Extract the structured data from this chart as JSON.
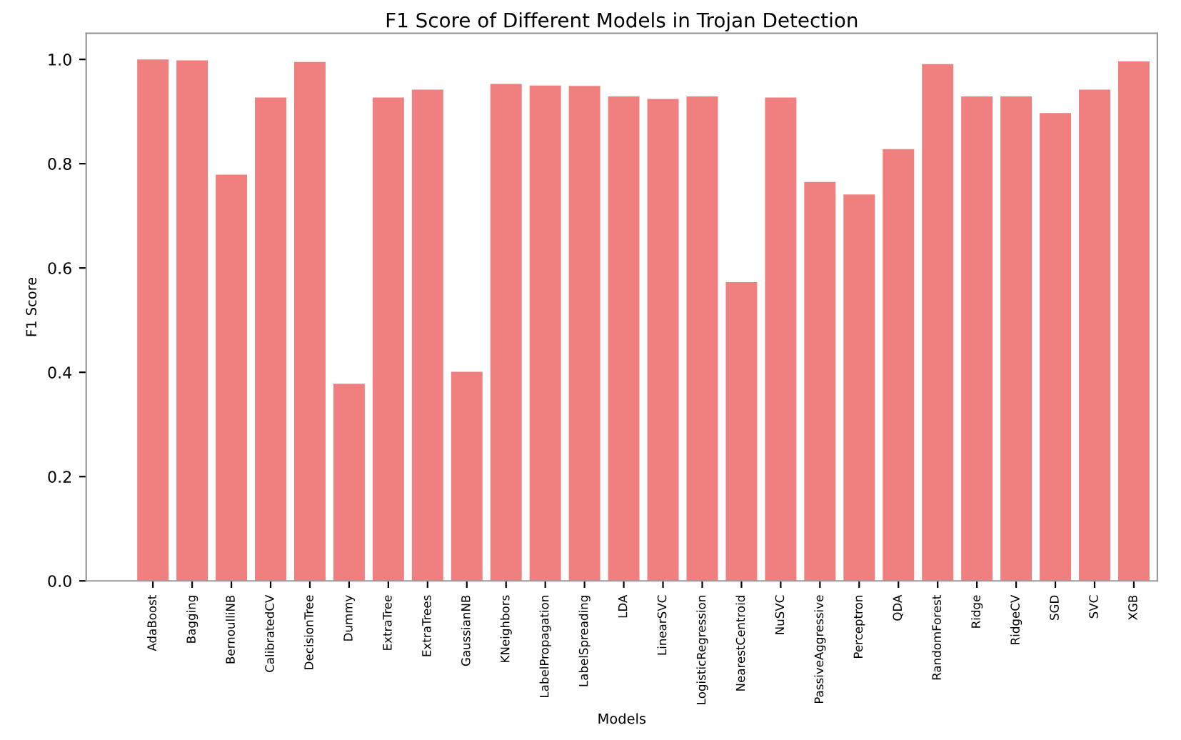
{
  "chart_data": {
    "type": "bar",
    "title": "F1 Score of Different Models in Trojan Detection",
    "xlabel": "Models",
    "ylabel": "F1 Score",
    "categories": [
      "AdaBoost",
      "Bagging",
      "BernoulliNB",
      "CalibratedCV",
      "DecisionTree",
      "Dummy",
      "ExtraTree",
      "ExtraTrees",
      "GaussianNB",
      "KNeighbors",
      "LabelPropagation",
      "LabelSpreading",
      "LDA",
      "LinearSVC",
      "LogisticRegression",
      "NearestCentroid",
      "NuSVC",
      "PassiveAggressive",
      "Perceptron",
      "QDA",
      "RandomForest",
      "Ridge",
      "RidgeCV",
      "SGD",
      "SVC",
      "XGB"
    ],
    "values": [
      1.0,
      0.998,
      0.779,
      0.927,
      0.995,
      0.378,
      0.927,
      0.942,
      0.401,
      0.953,
      0.95,
      0.949,
      0.929,
      0.924,
      0.929,
      0.573,
      0.927,
      0.765,
      0.741,
      0.828,
      0.991,
      0.929,
      0.929,
      0.897,
      0.942,
      0.996
    ],
    "color": "#f08080",
    "ylim": [
      0,
      1.05
    ],
    "yticks": [
      {
        "value": 0,
        "label": "0.0"
      },
      {
        "value": 0.2,
        "label": "0.2"
      },
      {
        "value": 0.4,
        "label": "0.4"
      },
      {
        "value": 0.6,
        "label": "0.6"
      },
      {
        "value": 0.8,
        "label": "0.8"
      },
      {
        "value": 1.0,
        "label": "1.0"
      }
    ],
    "grid": false,
    "legend": false
  }
}
